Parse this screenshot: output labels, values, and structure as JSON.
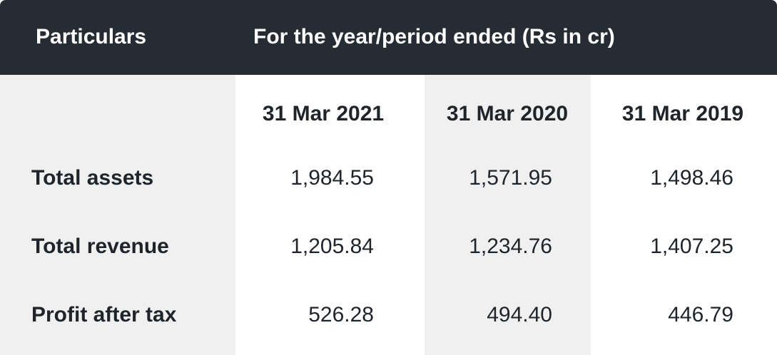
{
  "header": [
    "Particulars",
    "For the year/period ended (Rs in cr)"
  ],
  "columns": [
    "31 Mar 2021",
    "31 Mar 2020",
    "31 Mar 2019"
  ],
  "rows": [
    {
      "label": "Total assets",
      "values": [
        "1,984.55",
        "1,571.95",
        "1,498.46"
      ]
    },
    {
      "label": "Total revenue",
      "values": [
        "1,205.84",
        "1,234.76",
        "1,407.25"
      ]
    },
    {
      "label": "Profit after tax",
      "values": [
        "526.28",
        "494.40",
        "446.79"
      ]
    }
  ]
}
